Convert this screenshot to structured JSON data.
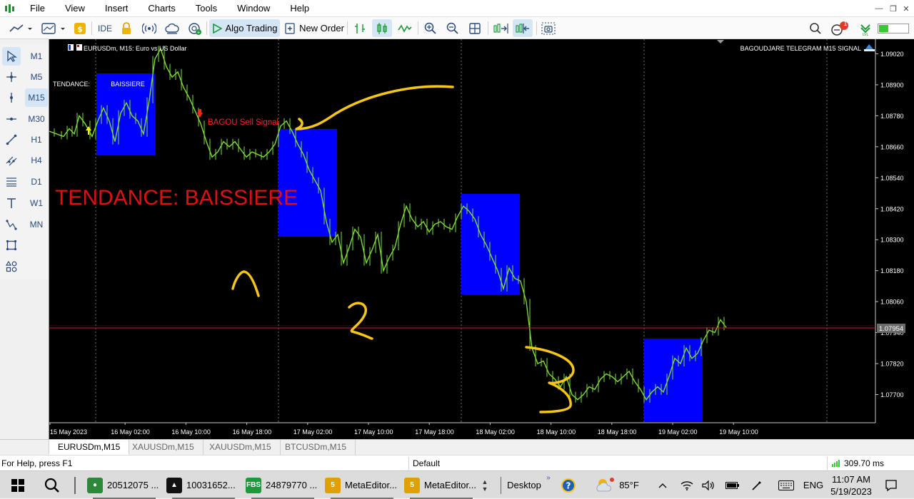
{
  "menu": {
    "items": [
      "File",
      "View",
      "Insert",
      "Charts",
      "Tools",
      "Window",
      "Help"
    ]
  },
  "toolbar": {
    "ide_label": "IDE",
    "algo_trading_label": "Algo Trading",
    "new_order_label": "New Order",
    "notification_count": "1"
  },
  "timeframes": [
    "M1",
    "M5",
    "M15",
    "M30",
    "H1",
    "H4",
    "D1",
    "W1",
    "MN"
  ],
  "timeframe_active": "M15",
  "chart": {
    "title": "EURUSDm, M15:  Euro vs US Dollar",
    "signal_name": "BAGOUDJARE TELEGRAM M15 SIGNAL",
    "tendance_label": "TENDANCE:",
    "tendance_box": "BAISSIERE",
    "sell_signal": "BAGOU Sell Signal",
    "big_label": "TENDANCE: BAISSIERE",
    "current_price": "1.07954",
    "annotations": [
      "1",
      "2",
      "3"
    ],
    "colors": {
      "background": "#000000",
      "candles": "#7ddc3c",
      "boxes": "#0000ff",
      "big_label": "#e01010",
      "sell_signal": "#ff2020",
      "annotation": "#f5c518",
      "price_line": "#c0202a"
    }
  },
  "chart_data": {
    "type": "line",
    "title": "",
    "x_tick_labels": [
      "15 May 2023",
      "16 May 02:00",
      "16 May 10:00",
      "16 May 18:00",
      "17 May 02:00",
      "17 May 10:00",
      "17 May 18:00",
      "18 May 02:00",
      "18 May 10:00",
      "18 May 18:00",
      "19 May 02:00",
      "19 May 10:00"
    ],
    "y_tick_labels": [
      "1.09020",
      "1.08900",
      "1.08780",
      "1.08660",
      "1.08540",
      "1.08420",
      "1.08300",
      "1.08180",
      "1.08060",
      "1.07940",
      "1.07820",
      "1.07700"
    ],
    "ylim": [
      1.0764,
      1.0904
    ],
    "grid": "vertical dotted",
    "series": [
      {
        "x_index": [
          0,
          10,
          20,
          28,
          35,
          42,
          50,
          60,
          68,
          76,
          84,
          92,
          100,
          108,
          116,
          124,
          132,
          140,
          148,
          156,
          164,
          172,
          180,
          188,
          196,
          204,
          212,
          220,
          228,
          236,
          244,
          252,
          260,
          268,
          276,
          284,
          292,
          300,
          308,
          316,
          324,
          332,
          340,
          348,
          356,
          364,
          372,
          380,
          388,
          396,
          404,
          412,
          420,
          428,
          436,
          444,
          452,
          460,
          468,
          476,
          484,
          492,
          500,
          508,
          516,
          524,
          532,
          540,
          548,
          556,
          564,
          572,
          580,
          588,
          596,
          604,
          612,
          620,
          628,
          636,
          644,
          652,
          660,
          668,
          676,
          684,
          692,
          700,
          708,
          716,
          724,
          732,
          740,
          748,
          756,
          764,
          772,
          780,
          788,
          796,
          804,
          812,
          820,
          828,
          836,
          844,
          852,
          860,
          868,
          876,
          884,
          892,
          900,
          908,
          916,
          924,
          932,
          940,
          948
        ],
        "values": [
          1.0872,
          1.0871,
          1.087,
          1.0873,
          1.0871,
          1.0878,
          1.0875,
          1.087,
          1.0876,
          1.0881,
          1.0876,
          1.0868,
          1.0879,
          1.0883,
          1.0878,
          1.0876,
          1.0871,
          1.0884,
          1.09,
          1.0904,
          1.0897,
          1.0893,
          1.0895,
          1.0889,
          1.0885,
          1.088,
          1.0875,
          1.0868,
          1.0862,
          1.0864,
          1.0868,
          1.0866,
          1.0868,
          1.0865,
          1.0862,
          1.0864,
          1.0863,
          1.0862,
          1.0864,
          1.0867,
          1.0874,
          1.0876,
          1.0872,
          1.0867,
          1.0863,
          1.0857,
          1.0853,
          1.0849,
          1.0837,
          1.0829,
          1.0832,
          1.0821,
          1.0827,
          1.0834,
          1.0831,
          1.0821,
          1.0826,
          1.0832,
          1.0818,
          1.0823,
          1.0827,
          1.0836,
          1.0843,
          1.0838,
          1.0835,
          1.0837,
          1.0833,
          1.0836,
          1.0837,
          1.0835,
          1.0834,
          1.0839,
          1.0843,
          1.0841,
          1.0838,
          1.0832,
          1.0828,
          1.0823,
          1.0818,
          1.0811,
          1.0819,
          1.0815,
          1.0814,
          1.0806,
          1.0788,
          1.0782,
          1.0783,
          1.0778,
          1.0776,
          1.0773,
          1.0777,
          1.077,
          1.0768,
          1.077,
          1.0773,
          1.0772,
          1.0776,
          1.0778,
          1.0777,
          1.0775,
          1.0777,
          1.0779,
          1.0775,
          1.0772,
          1.0768,
          1.0771,
          1.0773,
          1.0771,
          1.0777,
          1.0784,
          1.0782,
          1.0788,
          1.0784,
          1.0786,
          1.0791,
          1.0795,
          1.0794,
          1.0799,
          1.0796
        ],
        "color": "#7ddc3c"
      }
    ]
  },
  "chart_tabs": [
    "EURUSDm,M15",
    "XAUUSDm,M15",
    "XAUUSDm,M15",
    "BTCUSDm,M15"
  ],
  "statusbar": {
    "help": "For Help, press F1",
    "profile": "Default",
    "ping": "309.70 ms"
  },
  "taskbar": {
    "items": [
      {
        "label": "20512075 ...",
        "color": "#2a8a3a"
      },
      {
        "label": "10031652...",
        "color": "#111111"
      },
      {
        "label": "24879770 ...",
        "color": "#1a9a3a"
      },
      {
        "label": "MetaEditor...",
        "color": "#e0a000"
      },
      {
        "label": "MetaEditor...",
        "color": "#e0a000"
      }
    ],
    "desktop": "Desktop",
    "weather": "85°F",
    "language": "ENG",
    "time": "11:07 AM",
    "date": "5/19/2023"
  }
}
